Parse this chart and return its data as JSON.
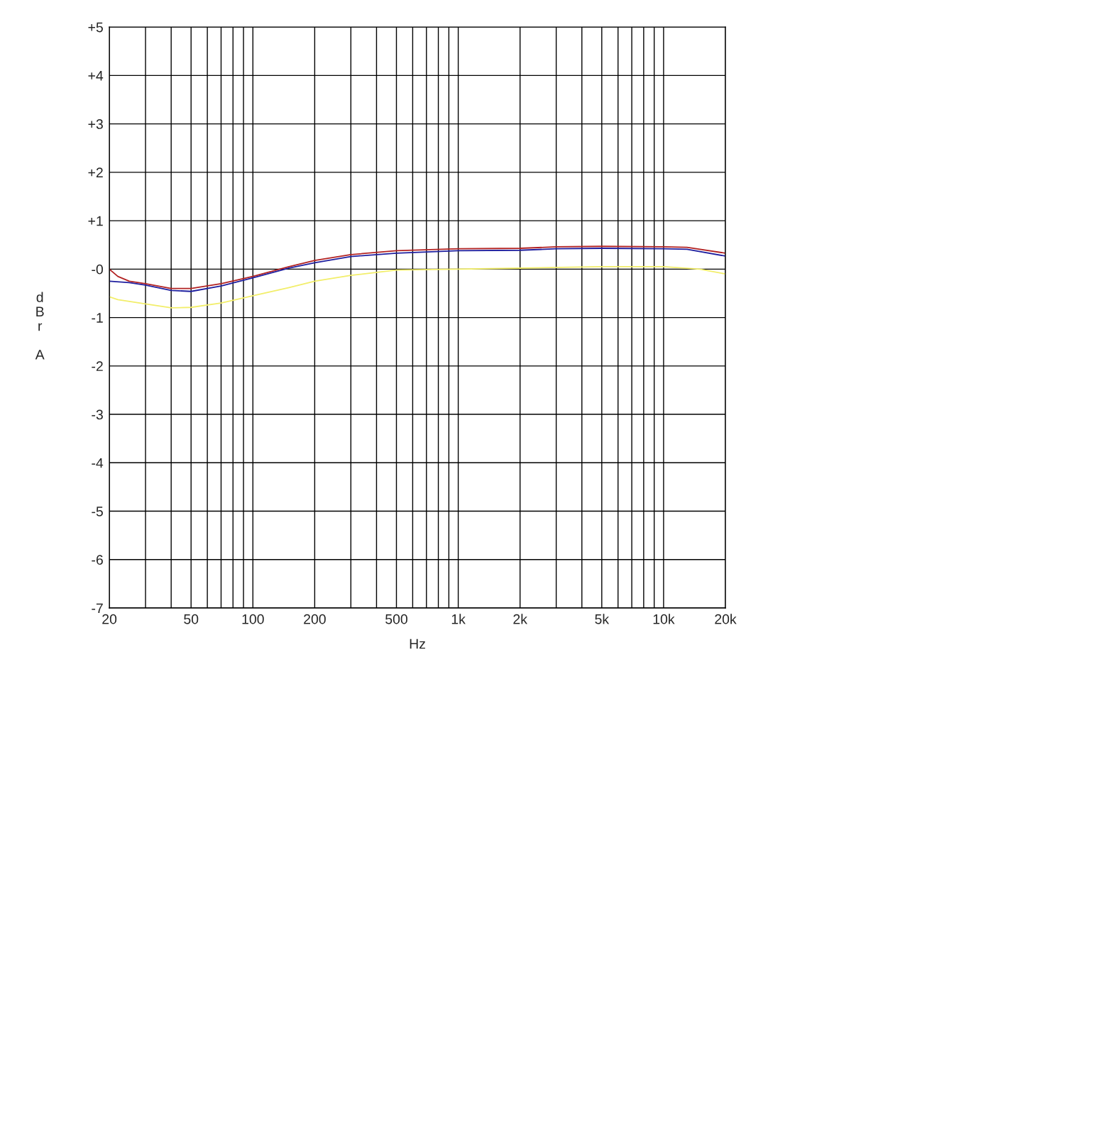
{
  "chart_data": {
    "type": "line",
    "xlabel": "Hz",
    "ylabel": "dBr A",
    "log": "x",
    "grid": true,
    "legend": false,
    "marker": "none",
    "line_style": "solid",
    "xlim": [
      20,
      20000
    ],
    "ylim": [
      -7,
      5
    ],
    "xticks": [
      20,
      {
        "value": 30,
        "label": null
      },
      {
        "value": 40,
        "label": null
      },
      50,
      {
        "value": 60,
        "label": null
      },
      {
        "value": 70,
        "label": null
      },
      {
        "value": 80,
        "label": null
      },
      {
        "value": 90,
        "label": null
      },
      100,
      200,
      {
        "value": 300,
        "label": null
      },
      {
        "value": 400,
        "label": null
      },
      500,
      {
        "value": 600,
        "label": null
      },
      {
        "value": 700,
        "label": null
      },
      {
        "value": 800,
        "label": null
      },
      {
        "value": 900,
        "label": null
      },
      {
        "value": 1000,
        "label": "1k"
      },
      {
        "value": 2000,
        "label": "2k"
      },
      {
        "value": 3000,
        "label": null
      },
      {
        "value": 4000,
        "label": null
      },
      {
        "value": 5000,
        "label": "5k"
      },
      {
        "value": 6000,
        "label": null
      },
      {
        "value": 7000,
        "label": null
      },
      {
        "value": 8000,
        "label": null
      },
      {
        "value": 9000,
        "label": null
      },
      {
        "value": 10000,
        "label": "10k"
      },
      {
        "value": 20000,
        "label": "20k"
      }
    ],
    "yticks": [
      {
        "value": 5,
        "label": "+5"
      },
      {
        "value": 4,
        "label": "+4"
      },
      {
        "value": 3,
        "label": "+3"
      },
      {
        "value": 2,
        "label": "+2"
      },
      {
        "value": 1,
        "label": "+1"
      },
      {
        "value": 0,
        "label": "-0"
      },
      -1,
      -2,
      -3,
      -4,
      -5,
      -6,
      -7
    ],
    "series": [
      {
        "color": "#b22222",
        "x": [
          20,
          22,
          25,
          30,
          40,
          50,
          70,
          100,
          150,
          200,
          300,
          500,
          1000,
          2000,
          3000,
          5000,
          10000,
          13000,
          20000
        ],
        "values": [
          0,
          -0.15,
          -0.25,
          -0.3,
          -0.4,
          -0.4,
          -0.3,
          -0.15,
          0.05,
          0.18,
          0.3,
          0.38,
          0.42,
          0.43,
          0.46,
          0.47,
          0.46,
          0.45,
          0.33
        ]
      },
      {
        "color": "#1f1f9f",
        "x": [
          20,
          25,
          30,
          40,
          50,
          70,
          100,
          150,
          200,
          300,
          500,
          1000,
          2000,
          3000,
          5000,
          10000,
          13000,
          20000
        ],
        "values": [
          -0.25,
          -0.28,
          -0.33,
          -0.44,
          -0.46,
          -0.35,
          -0.18,
          0.02,
          0.13,
          0.26,
          0.33,
          0.38,
          0.39,
          0.42,
          0.43,
          0.42,
          0.41,
          0.27
        ]
      },
      {
        "color": "#f2ee6a",
        "x": [
          20,
          22,
          30,
          40,
          50,
          70,
          100,
          150,
          200,
          300,
          500,
          1000,
          2000,
          5000,
          10000,
          15000,
          20000
        ],
        "values": [
          -0.57,
          -0.63,
          -0.72,
          -0.8,
          -0.79,
          -0.7,
          -0.55,
          -0.38,
          -0.25,
          -0.13,
          -0.02,
          0,
          0.02,
          0.05,
          0.05,
          0.0,
          -0.1
        ]
      }
    ]
  }
}
